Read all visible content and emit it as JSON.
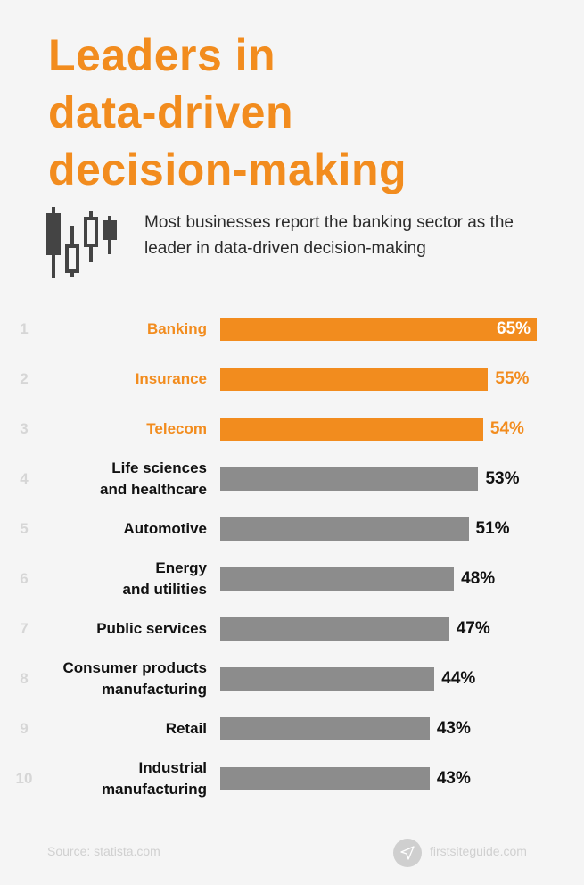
{
  "title_lines": [
    "Leaders in",
    "data-driven",
    "decision-making"
  ],
  "subtitle": "Most businesses report the banking sector as the leader in data-driven decision-making",
  "icon": "candlestick-chart-icon",
  "colors": {
    "highlight": "#f28c1e",
    "default_bar": "#8c8c8c",
    "background": "#f5f5f5"
  },
  "chart_data": {
    "type": "bar",
    "orientation": "horizontal",
    "ranks": [
      "1",
      "2",
      "3",
      "4",
      "5",
      "6",
      "7",
      "8",
      "9",
      "10"
    ],
    "categories": [
      "Banking",
      "Insurance",
      "Telecom",
      "Life sciences\nand healthcare",
      "Automotive",
      "Energy\nand utilities",
      "Public services",
      "Consumer products\nmanufacturing",
      "Retail",
      "Industrial\nmanufacturing"
    ],
    "values": [
      65,
      55,
      54,
      53,
      51,
      48,
      47,
      44,
      43,
      43
    ],
    "value_labels": [
      "65%",
      "55%",
      "54%",
      "53%",
      "51%",
      "48%",
      "47%",
      "44%",
      "43%",
      "43%"
    ],
    "highlighted": [
      true,
      true,
      true,
      false,
      false,
      false,
      false,
      false,
      false,
      false
    ],
    "grid": false
  },
  "footer": {
    "source": "Source: statista.com",
    "brand": "firstsiteguide.com",
    "brand_icon": "paper-plane-icon"
  }
}
